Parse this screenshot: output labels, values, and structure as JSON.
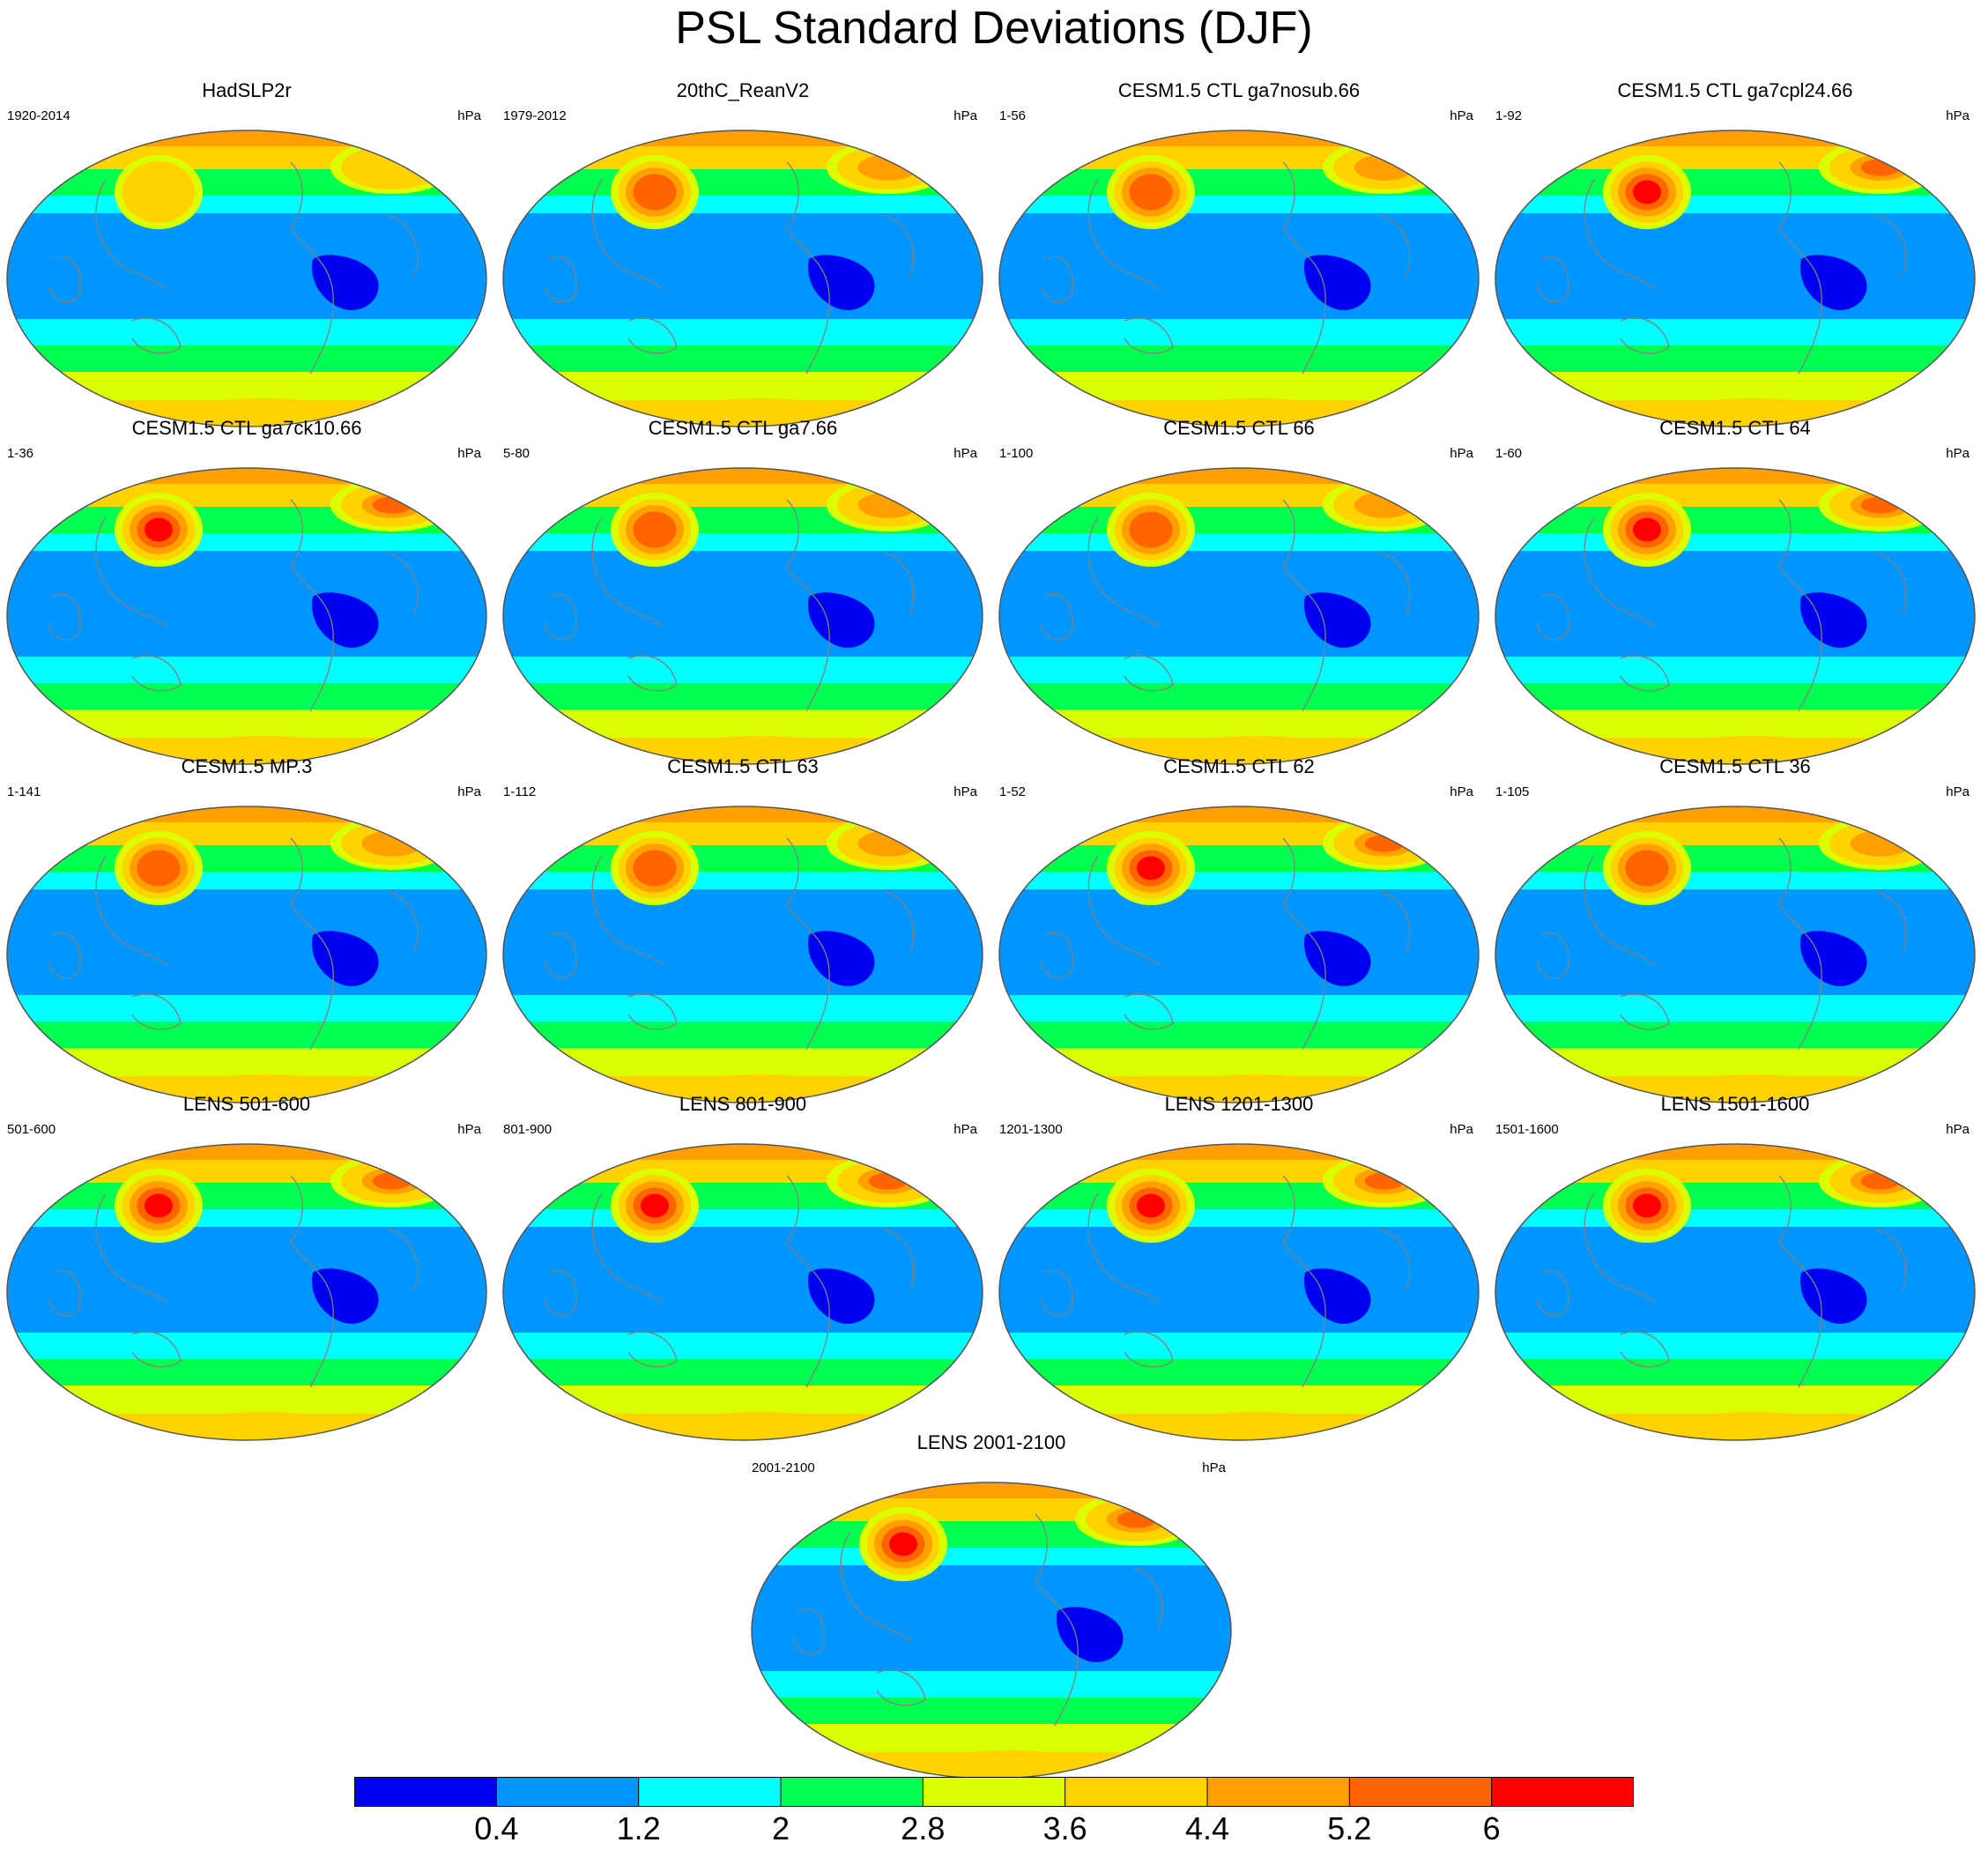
{
  "chart_data": {
    "type": "heatmap",
    "title": "PSL Standard Deviations (DJF)",
    "projection": "global map (elliptical)",
    "units": "hPa",
    "colorbar": {
      "tick_labels": [
        "0.4",
        "1.2",
        "2",
        "2.8",
        "3.6",
        "4.4",
        "5.2",
        "6"
      ],
      "boundaries": [
        0.4,
        1.2,
        2.0,
        2.8,
        3.6,
        4.4,
        5.2,
        6.0
      ],
      "colors": [
        "#0000f0",
        "#0096ff",
        "#00ffff",
        "#00ff50",
        "#dcff00",
        "#ffd200",
        "#ffa000",
        "#ff6400",
        "#ff0000"
      ]
    },
    "panels": [
      {
        "title": "HadSLP2r",
        "period": "1920-2014",
        "units": "hPa",
        "peak_sd_n_pacific": 4.6
      },
      {
        "title": "20thC_ReanV2",
        "period": "1979-2012",
        "units": "hPa",
        "peak_sd_n_pacific": 5.6
      },
      {
        "title": "CESM1.5 CTL ga7nosub.66",
        "period": "1-56",
        "units": "hPa",
        "peak_sd_n_pacific": 5.6
      },
      {
        "title": "CESM1.5 CTL ga7cpl24.66",
        "period": "1-92",
        "units": "hPa",
        "peak_sd_n_pacific": 6.2
      },
      {
        "title": "CESM1.5 CTL ga7ck10.66",
        "period": "1-36",
        "units": "hPa",
        "peak_sd_n_pacific": 6.2
      },
      {
        "title": "CESM1.5 CTL ga7.66",
        "period": "5-80",
        "units": "hPa",
        "peak_sd_n_pacific": 5.6
      },
      {
        "title": "CESM1.5 CTL 66",
        "period": "1-100",
        "units": "hPa",
        "peak_sd_n_pacific": 5.6
      },
      {
        "title": "CESM1.5 CTL 64",
        "period": "1-60",
        "units": "hPa",
        "peak_sd_n_pacific": 6.1
      },
      {
        "title": "CESM1.5 MP.3",
        "period": "1-141",
        "units": "hPa",
        "peak_sd_n_pacific": 5.4
      },
      {
        "title": "CESM1.5 CTL 63",
        "period": "1-112",
        "units": "hPa",
        "peak_sd_n_pacific": 5.4
      },
      {
        "title": "CESM1.5 CTL 62",
        "period": "1-52",
        "units": "hPa",
        "peak_sd_n_pacific": 6.1
      },
      {
        "title": "CESM1.5 CTL 36",
        "period": "1-105",
        "units": "hPa",
        "peak_sd_n_pacific": 5.4
      },
      {
        "title": "LENS 501-600",
        "period": "501-600",
        "units": "hPa",
        "peak_sd_n_pacific": 6.1
      },
      {
        "title": "LENS 801-900",
        "period": "801-900",
        "units": "hPa",
        "peak_sd_n_pacific": 6.1
      },
      {
        "title": "LENS 1201-1300",
        "period": "1201-1300",
        "units": "hPa",
        "peak_sd_n_pacific": 6.1
      },
      {
        "title": "LENS 1501-1600",
        "period": "1501-1600",
        "units": "hPa",
        "peak_sd_n_pacific": 6.1
      },
      {
        "title": "LENS 2001-2100",
        "period": "2001-2100",
        "units": "hPa",
        "peak_sd_n_pacific": 6.1
      }
    ]
  }
}
